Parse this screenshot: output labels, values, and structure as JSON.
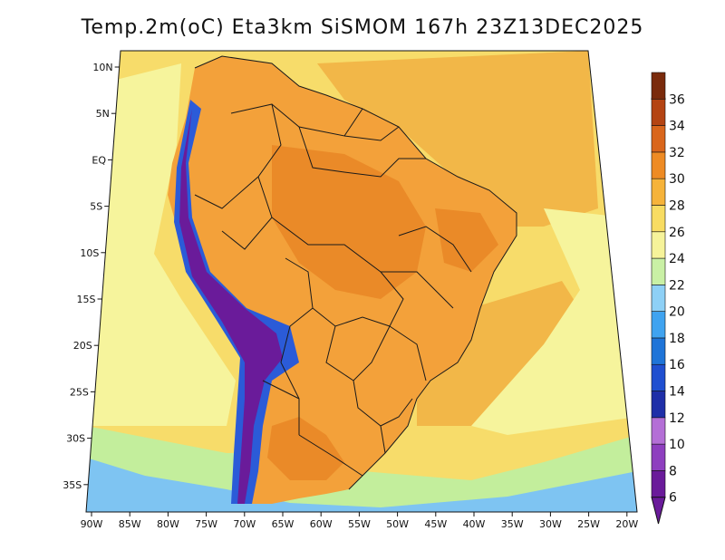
{
  "title": "Temp.2m(oC) Eta3km SiSMOM 167h 23Z13DEC2025",
  "map": {
    "lat_labels": [
      "10N",
      "5N",
      "EQ",
      "5S",
      "10S",
      "15S",
      "20S",
      "25S",
      "30S",
      "35S"
    ],
    "lon_labels": [
      "90W",
      "85W",
      "80W",
      "75W",
      "70W",
      "65W",
      "60W",
      "55W",
      "50W",
      "45W",
      "40W",
      "35W",
      "30W",
      "25W",
      "20W"
    ]
  },
  "colorbar": {
    "labels": [
      "6",
      "8",
      "10",
      "12",
      "14",
      "16",
      "18",
      "20",
      "22",
      "24",
      "26",
      "28",
      "30",
      "32",
      "34",
      "36"
    ],
    "colors": [
      "#6a1b9a",
      "#8e3fbf",
      "#b46fd6",
      "#1f2fa8",
      "#1f4fd0",
      "#1e74d8",
      "#3fa3f0",
      "#8ed0f6",
      "#c9f0a5",
      "#f6f39a",
      "#f8dc62",
      "#f6b33a",
      "#ee8b24",
      "#d9661c",
      "#b44413",
      "#7a2b0c"
    ]
  },
  "palette": {
    "ocean": "#f7dc6a",
    "ocean_warm": "#f2b748",
    "ocean_pale": "#f6f49c",
    "ocean_cool": "#c3ee9c",
    "ocean_blue": "#7ec4f2",
    "land_hot": "#ea8a28",
    "land_warm": "#f3a13a",
    "andes": "#6a1b9a",
    "andes_blue": "#2b5bd8",
    "border": "#1a1a1a"
  }
}
